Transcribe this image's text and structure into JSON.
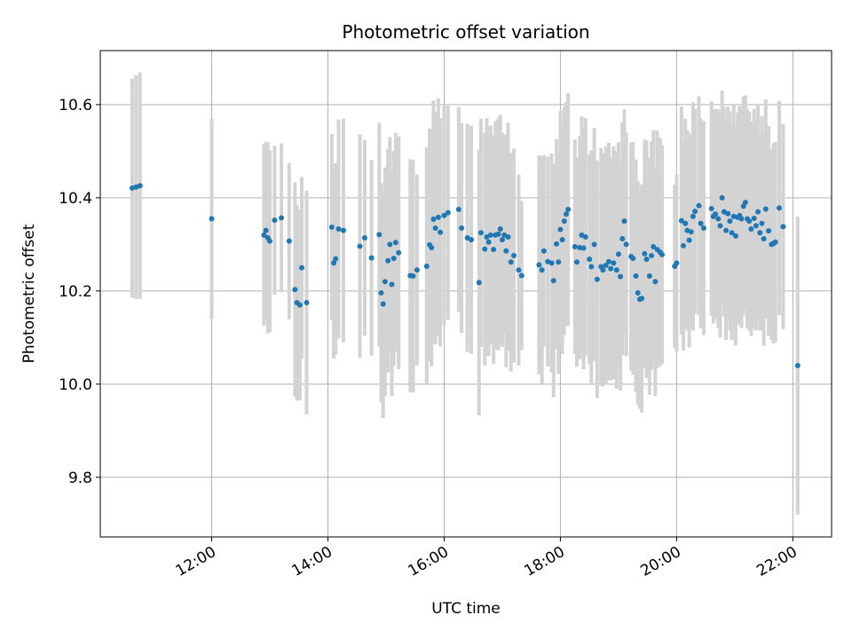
{
  "chart_data": {
    "type": "scatter",
    "title": "Photometric offset variation",
    "xlabel": "UTC time",
    "ylabel": "Photometric offset",
    "x_tick_labels": [
      "12:00",
      "14:00",
      "16:00",
      "18:00",
      "20:00",
      "22:00"
    ],
    "x_ticks": [
      "12:00",
      "14:00",
      "16:00",
      "18:00",
      "20:00",
      "22:00"
    ],
    "xlim": [
      "10:05",
      "22:40"
    ],
    "y_tick_labels": [
      "9.8",
      "10.0",
      "10.2",
      "10.4",
      "10.6"
    ],
    "y_ticks": [
      9.8,
      10.0,
      10.2,
      10.4,
      10.6
    ],
    "ylim": [
      9.672,
      10.716
    ],
    "grid": true,
    "colors": {
      "points": "#1f77b4",
      "error_bars": "#d3d3d3",
      "grid": "#b0b0b0"
    },
    "points": [
      {
        "t": "10:38",
        "y": 10.421,
        "err": 0.235
      },
      {
        "t": "10:42",
        "y": 10.423,
        "err": 0.24
      },
      {
        "t": "10:46",
        "y": 10.426,
        "err": 0.243
      },
      {
        "t": "12:00",
        "y": 10.355,
        "err": 0.215
      },
      {
        "t": "12:54",
        "y": 10.32,
        "err": 0.195
      },
      {
        "t": "12:56",
        "y": 10.33,
        "err": 0.19
      },
      {
        "t": "12:58",
        "y": 10.314,
        "err": 0.205
      },
      {
        "t": "13:00",
        "y": 10.307,
        "err": 0.195
      },
      {
        "t": "13:05",
        "y": 10.352,
        "err": 0.16
      },
      {
        "t": "13:12",
        "y": 10.357,
        "err": 0.16
      },
      {
        "t": "13:20",
        "y": 10.307,
        "err": 0.168
      },
      {
        "t": "13:26",
        "y": 10.203,
        "err": 0.23
      },
      {
        "t": "13:28",
        "y": 10.175,
        "err": 0.21
      },
      {
        "t": "13:31",
        "y": 10.17,
        "err": 0.205
      },
      {
        "t": "13:33",
        "y": 10.25,
        "err": 0.195
      },
      {
        "t": "13:38",
        "y": 10.175,
        "err": 0.24
      },
      {
        "t": "14:04",
        "y": 10.337,
        "err": 0.2
      },
      {
        "t": "14:06",
        "y": 10.26,
        "err": 0.205
      },
      {
        "t": "14:08",
        "y": 10.269,
        "err": 0.205
      },
      {
        "t": "14:11",
        "y": 10.333,
        "err": 0.235
      },
      {
        "t": "14:16",
        "y": 10.33,
        "err": 0.24
      },
      {
        "t": "14:33",
        "y": 10.296,
        "err": 0.24
      },
      {
        "t": "14:38",
        "y": 10.314,
        "err": 0.21
      },
      {
        "t": "14:45",
        "y": 10.271,
        "err": 0.21
      },
      {
        "t": "14:53",
        "y": 10.321,
        "err": 0.24
      },
      {
        "t": "14:55",
        "y": 10.196,
        "err": 0.235
      },
      {
        "t": "14:57",
        "y": 10.172,
        "err": 0.245
      },
      {
        "t": "14:59",
        "y": 10.22,
        "err": 0.245
      },
      {
        "t": "15:02",
        "y": 10.265,
        "err": 0.24
      },
      {
        "t": "15:04",
        "y": 10.3,
        "err": 0.23
      },
      {
        "t": "15:06",
        "y": 10.214,
        "err": 0.24
      },
      {
        "t": "15:08",
        "y": 10.27,
        "err": 0.23
      },
      {
        "t": "15:10",
        "y": 10.304,
        "err": 0.235
      },
      {
        "t": "15:13",
        "y": 10.282,
        "err": 0.25
      },
      {
        "t": "15:25",
        "y": 10.233,
        "err": 0.25
      },
      {
        "t": "15:28",
        "y": 10.232,
        "err": 0.25
      },
      {
        "t": "15:32",
        "y": 10.245,
        "err": 0.205
      },
      {
        "t": "15:42",
        "y": 10.253,
        "err": 0.255
      },
      {
        "t": "15:45",
        "y": 10.299,
        "err": 0.25
      },
      {
        "t": "15:47",
        "y": 10.293,
        "err": 0.255
      },
      {
        "t": "15:49",
        "y": 10.354,
        "err": 0.255
      },
      {
        "t": "15:51",
        "y": 10.335,
        "err": 0.25
      },
      {
        "t": "15:54",
        "y": 10.358,
        "err": 0.255
      },
      {
        "t": "15:56",
        "y": 10.326,
        "err": 0.245
      },
      {
        "t": "16:00",
        "y": 10.362,
        "err": 0.235
      },
      {
        "t": "16:04",
        "y": 10.368,
        "err": 0.23
      },
      {
        "t": "16:15",
        "y": 10.375,
        "err": 0.22
      },
      {
        "t": "16:18",
        "y": 10.335,
        "err": 0.225
      },
      {
        "t": "16:24",
        "y": 10.314,
        "err": 0.245
      },
      {
        "t": "16:28",
        "y": 10.31,
        "err": 0.245
      },
      {
        "t": "16:36",
        "y": 10.218,
        "err": 0.285
      },
      {
        "t": "16:38",
        "y": 10.325,
        "err": 0.245
      },
      {
        "t": "16:42",
        "y": 10.29,
        "err": 0.25
      },
      {
        "t": "16:44",
        "y": 10.316,
        "err": 0.255
      },
      {
        "t": "16:46",
        "y": 10.305,
        "err": 0.245
      },
      {
        "t": "16:48",
        "y": 10.32,
        "err": 0.235
      },
      {
        "t": "16:51",
        "y": 10.289,
        "err": 0.245
      },
      {
        "t": "16:53",
        "y": 10.32,
        "err": 0.245
      },
      {
        "t": "16:56",
        "y": 10.322,
        "err": 0.25
      },
      {
        "t": "16:58",
        "y": 10.333,
        "err": 0.245
      },
      {
        "t": "17:00",
        "y": 10.31,
        "err": 0.23
      },
      {
        "t": "17:02",
        "y": 10.32,
        "err": 0.21
      },
      {
        "t": "17:04",
        "y": 10.286,
        "err": 0.25
      },
      {
        "t": "17:06",
        "y": 10.316,
        "err": 0.245
      },
      {
        "t": "17:09",
        "y": 10.262,
        "err": 0.235
      },
      {
        "t": "17:12",
        "y": 10.276,
        "err": 0.23
      },
      {
        "t": "17:17",
        "y": 10.245,
        "err": 0.205
      },
      {
        "t": "17:20",
        "y": 10.233,
        "err": 0.16
      },
      {
        "t": "17:38",
        "y": 10.256,
        "err": 0.235
      },
      {
        "t": "17:41",
        "y": 10.245,
        "err": 0.245
      },
      {
        "t": "17:43",
        "y": 10.286,
        "err": 0.205
      },
      {
        "t": "17:47",
        "y": 10.263,
        "err": 0.225
      },
      {
        "t": "17:51",
        "y": 10.26,
        "err": 0.235
      },
      {
        "t": "17:53",
        "y": 10.222,
        "err": 0.25
      },
      {
        "t": "17:56",
        "y": 10.301,
        "err": 0.225
      },
      {
        "t": "17:58",
        "y": 10.262,
        "err": 0.24
      },
      {
        "t": "18:00",
        "y": 10.332,
        "err": 0.255
      },
      {
        "t": "18:02",
        "y": 10.31,
        "err": 0.245
      },
      {
        "t": "18:04",
        "y": 10.35,
        "err": 0.245
      },
      {
        "t": "18:06",
        "y": 10.365,
        "err": 0.24
      },
      {
        "t": "18:08",
        "y": 10.375,
        "err": 0.25
      },
      {
        "t": "18:15",
        "y": 10.295,
        "err": 0.23
      },
      {
        "t": "18:17",
        "y": 10.262,
        "err": 0.225
      },
      {
        "t": "18:20",
        "y": 10.293,
        "err": 0.24
      },
      {
        "t": "18:22",
        "y": 10.32,
        "err": 0.255
      },
      {
        "t": "18:24",
        "y": 10.292,
        "err": 0.26
      },
      {
        "t": "18:26",
        "y": 10.316,
        "err": 0.255
      },
      {
        "t": "18:30",
        "y": 10.268,
        "err": 0.225
      },
      {
        "t": "18:32",
        "y": 10.252,
        "err": 0.25
      },
      {
        "t": "18:35",
        "y": 10.3,
        "err": 0.25
      },
      {
        "t": "18:38",
        "y": 10.225,
        "err": 0.255
      },
      {
        "t": "18:42",
        "y": 10.252,
        "err": 0.255
      },
      {
        "t": "18:44",
        "y": 10.245,
        "err": 0.25
      },
      {
        "t": "18:47",
        "y": 10.255,
        "err": 0.255
      },
      {
        "t": "18:50",
        "y": 10.263,
        "err": 0.255
      },
      {
        "t": "18:52",
        "y": 10.248,
        "err": 0.24
      },
      {
        "t": "18:55",
        "y": 10.26,
        "err": 0.25
      },
      {
        "t": "18:58",
        "y": 10.245,
        "err": 0.255
      },
      {
        "t": "19:00",
        "y": 10.279,
        "err": 0.24
      },
      {
        "t": "19:02",
        "y": 10.231,
        "err": 0.245
      },
      {
        "t": "19:04",
        "y": 10.312,
        "err": 0.25
      },
      {
        "t": "19:06",
        "y": 10.35,
        "err": 0.24
      },
      {
        "t": "19:08",
        "y": 10.3,
        "err": 0.24
      },
      {
        "t": "19:13",
        "y": 10.274,
        "err": 0.245
      },
      {
        "t": "19:15",
        "y": 10.27,
        "err": 0.25
      },
      {
        "t": "19:18",
        "y": 10.232,
        "err": 0.25
      },
      {
        "t": "19:20",
        "y": 10.196,
        "err": 0.24
      },
      {
        "t": "19:22",
        "y": 10.182,
        "err": 0.235
      },
      {
        "t": "19:24",
        "y": 10.184,
        "err": 0.245
      },
      {
        "t": "19:27",
        "y": 10.28,
        "err": 0.245
      },
      {
        "t": "19:29",
        "y": 10.268,
        "err": 0.255
      },
      {
        "t": "19:32",
        "y": 10.232,
        "err": 0.255
      },
      {
        "t": "19:34",
        "y": 10.276,
        "err": 0.245
      },
      {
        "t": "19:36",
        "y": 10.295,
        "err": 0.25
      },
      {
        "t": "19:38",
        "y": 10.22,
        "err": 0.245
      },
      {
        "t": "19:40",
        "y": 10.289,
        "err": 0.255
      },
      {
        "t": "19:43",
        "y": 10.283,
        "err": 0.245
      },
      {
        "t": "19:45",
        "y": 10.278,
        "err": 0.235
      },
      {
        "t": "19:58",
        "y": 10.253,
        "err": 0.175
      },
      {
        "t": "20:00",
        "y": 10.26,
        "err": 0.19
      },
      {
        "t": "20:05",
        "y": 10.351,
        "err": 0.245
      },
      {
        "t": "20:07",
        "y": 10.297,
        "err": 0.225
      },
      {
        "t": "20:09",
        "y": 10.345,
        "err": 0.225
      },
      {
        "t": "20:11",
        "y": 10.33,
        "err": 0.215
      },
      {
        "t": "20:13",
        "y": 10.309,
        "err": 0.23
      },
      {
        "t": "20:15",
        "y": 10.327,
        "err": 0.205
      },
      {
        "t": "20:17",
        "y": 10.36,
        "err": 0.245
      },
      {
        "t": "20:19",
        "y": 10.371,
        "err": 0.22
      },
      {
        "t": "20:23",
        "y": 10.383,
        "err": 0.235
      },
      {
        "t": "20:25",
        "y": 10.345,
        "err": 0.225
      },
      {
        "t": "20:28",
        "y": 10.335,
        "err": 0.23
      },
      {
        "t": "20:36",
        "y": 10.377,
        "err": 0.23
      },
      {
        "t": "20:38",
        "y": 10.36,
        "err": 0.23
      },
      {
        "t": "20:40",
        "y": 10.365,
        "err": 0.225
      },
      {
        "t": "20:43",
        "y": 10.355,
        "err": 0.235
      },
      {
        "t": "20:45",
        "y": 10.34,
        "err": 0.24
      },
      {
        "t": "20:47",
        "y": 10.4,
        "err": 0.23
      },
      {
        "t": "20:49",
        "y": 10.37,
        "err": 0.225
      },
      {
        "t": "20:51",
        "y": 10.33,
        "err": 0.235
      },
      {
        "t": "20:53",
        "y": 10.366,
        "err": 0.23
      },
      {
        "t": "20:55",
        "y": 10.35,
        "err": 0.235
      },
      {
        "t": "20:57",
        "y": 10.325,
        "err": 0.23
      },
      {
        "t": "20:59",
        "y": 10.36,
        "err": 0.24
      },
      {
        "t": "21:01",
        "y": 10.318,
        "err": 0.235
      },
      {
        "t": "21:03",
        "y": 10.358,
        "err": 0.225
      },
      {
        "t": "21:05",
        "y": 10.362,
        "err": 0.235
      },
      {
        "t": "21:07",
        "y": 10.355,
        "err": 0.235
      },
      {
        "t": "21:09",
        "y": 10.382,
        "err": 0.235
      },
      {
        "t": "21:11",
        "y": 10.39,
        "err": 0.23
      },
      {
        "t": "21:13",
        "y": 10.355,
        "err": 0.235
      },
      {
        "t": "21:15",
        "y": 10.35,
        "err": 0.235
      },
      {
        "t": "21:17",
        "y": 10.333,
        "err": 0.23
      },
      {
        "t": "21:20",
        "y": 10.356,
        "err": 0.235
      },
      {
        "t": "21:22",
        "y": 10.34,
        "err": 0.225
      },
      {
        "t": "21:24",
        "y": 10.37,
        "err": 0.23
      },
      {
        "t": "21:26",
        "y": 10.325,
        "err": 0.21
      },
      {
        "t": "21:28",
        "y": 10.345,
        "err": 0.23
      },
      {
        "t": "21:30",
        "y": 10.312,
        "err": 0.23
      },
      {
        "t": "21:32",
        "y": 10.376,
        "err": 0.235
      },
      {
        "t": "21:35",
        "y": 10.329,
        "err": 0.225
      },
      {
        "t": "21:38",
        "y": 10.3,
        "err": 0.205
      },
      {
        "t": "21:40",
        "y": 10.302,
        "err": 0.215
      },
      {
        "t": "21:42",
        "y": 10.305,
        "err": 0.215
      },
      {
        "t": "21:46",
        "y": 10.378,
        "err": 0.23
      },
      {
        "t": "21:50",
        "y": 10.338,
        "err": 0.22
      },
      {
        "t": "22:05",
        "y": 10.04,
        "err": 0.32
      }
    ]
  }
}
